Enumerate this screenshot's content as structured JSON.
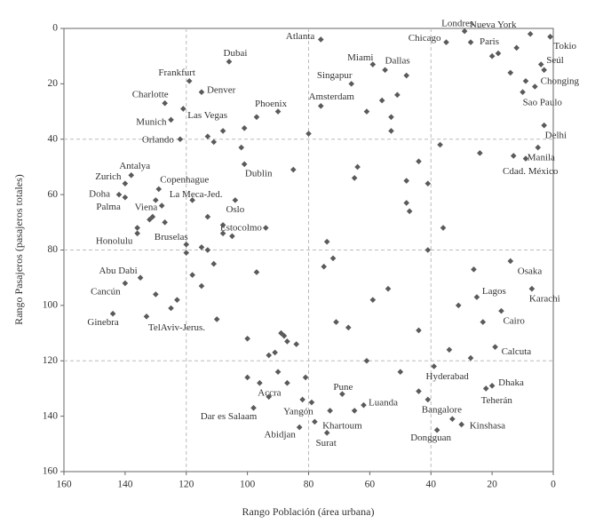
{
  "chart_data": {
    "type": "scatter",
    "xlabel": "Rango Población (área urbana)",
    "ylabel": "Rango Pasajeros (pasajeros totales)",
    "xlim": [
      160,
      0
    ],
    "ylim": [
      160,
      0
    ],
    "xticks": [
      160,
      140,
      120,
      100,
      80,
      60,
      40,
      20,
      0
    ],
    "yticks": [
      0,
      20,
      40,
      60,
      80,
      100,
      120,
      140,
      160
    ],
    "xgrid": [
      120,
      80,
      40
    ],
    "ygrid": [
      40,
      80,
      120
    ],
    "color": "#5a5a5a",
    "labels": [
      "Londres",
      "Nueva York",
      "Tokio",
      "Chicago",
      "Paris",
      "Seúl",
      "Chonging",
      "Sao Paulo",
      "Delhi",
      "Manila",
      "Cdad. México",
      "Atlanta",
      "Miami",
      "Dallas",
      "Singapur",
      "Amsterdam",
      "Dubai",
      "Frankfurt",
      "Denver",
      "Charlotte",
      "Las Vegas",
      "Munich",
      "Phoenix",
      "Orlando",
      "Dublin",
      "Antalya",
      "Zurich",
      "Copenhague",
      "Doha",
      "La Meca-Jed.",
      "Palma",
      "Oslo",
      "Viena",
      "Estocolmo",
      "Bruselas",
      "Honolulu",
      "Abu Dabi",
      "Cancún",
      "Ginebra",
      "TelAviv-Jerus.",
      "Osaka",
      "Karachi",
      "Lagos",
      "Cairo",
      "Calcuta",
      "Hyderabad",
      "Dhaka",
      "Teherán",
      "Pune",
      "Accra",
      "Dar es Salaam",
      "Yangón",
      "Luanda",
      "Bangalore",
      "Kinshasa",
      "Khartoum",
      "Abidjan",
      "Surat",
      "Dongguan",
      null,
      null,
      null,
      null,
      null,
      null,
      null,
      null,
      null,
      null,
      null,
      null,
      null,
      null,
      null,
      null,
      null,
      null,
      null,
      null,
      null,
      null,
      null,
      null,
      null,
      null,
      null,
      null,
      null,
      null,
      null,
      null,
      null,
      null,
      null,
      null,
      null,
      null,
      null,
      null,
      null,
      null,
      null,
      null,
      null,
      null,
      null,
      null,
      null,
      null,
      null,
      null,
      null,
      null,
      null,
      null,
      null,
      null,
      null,
      null,
      null,
      null,
      null,
      null,
      null,
      null,
      null,
      null,
      null,
      null,
      null,
      null,
      null,
      null,
      null,
      null,
      null,
      null,
      null,
      null
    ],
    "x": [
      29,
      7.5,
      1,
      35,
      27,
      4,
      3,
      10,
      3,
      5,
      9,
      76,
      59,
      55,
      66,
      76,
      106,
      119,
      115,
      127,
      121,
      125,
      90,
      122,
      101,
      138,
      140,
      129,
      142,
      118,
      140,
      104,
      132,
      105,
      120,
      136,
      135,
      140,
      144,
      133,
      14,
      7,
      25,
      17,
      19,
      39,
      20,
      22,
      69,
      96,
      98,
      79,
      62,
      33,
      30,
      78,
      83,
      74,
      38,
      12,
      18,
      20,
      14,
      9,
      6,
      48,
      51,
      56,
      53,
      61,
      53,
      80,
      37,
      24,
      13,
      44,
      48,
      41,
      64,
      65,
      85,
      74,
      72,
      75,
      94,
      48,
      47,
      36,
      41,
      26,
      54,
      59,
      31,
      71,
      67,
      44,
      23,
      34,
      27,
      61,
      50,
      44,
      84,
      88,
      87,
      89,
      93,
      91,
      100,
      100,
      87,
      81,
      90,
      93,
      82,
      73,
      65,
      41,
      111,
      113,
      108,
      102,
      101,
      97,
      113,
      108,
      130,
      128,
      127,
      131,
      120,
      118,
      115,
      111,
      113,
      115,
      110,
      125,
      130,
      123,
      97,
      108,
      136
    ],
    "values": [
      1,
      2,
      3,
      5,
      5,
      13,
      15,
      23,
      35,
      43,
      47,
      4,
      13,
      15,
      20,
      28,
      12,
      19,
      23,
      27,
      29,
      33,
      30,
      40,
      49,
      53,
      56,
      58,
      60,
      62,
      61,
      62,
      69,
      75,
      78,
      74,
      90,
      92,
      103,
      104,
      84,
      94,
      97,
      102,
      115,
      122,
      129,
      130,
      132,
      128,
      137,
      135,
      136,
      141,
      143,
      142,
      144,
      146,
      145,
      7,
      9,
      10,
      16,
      19,
      21,
      17,
      24,
      26,
      32,
      30,
      37,
      38,
      42,
      45,
      46,
      48,
      55,
      56,
      50,
      54,
      51,
      77,
      83,
      86,
      72,
      63,
      66,
      72,
      80,
      87,
      94,
      98,
      100,
      106,
      108,
      109,
      106,
      116,
      119,
      120,
      124,
      131,
      114,
      111,
      113,
      110,
      118,
      117,
      112,
      126,
      128,
      126,
      124,
      133,
      134,
      138,
      138,
      134,
      41,
      39,
      37,
      43,
      36,
      32,
      68,
      71,
      62,
      64,
      70,
      68,
      81,
      89,
      93,
      85,
      80,
      79,
      105,
      101,
      96,
      98,
      88,
      74,
      72
    ]
  }
}
